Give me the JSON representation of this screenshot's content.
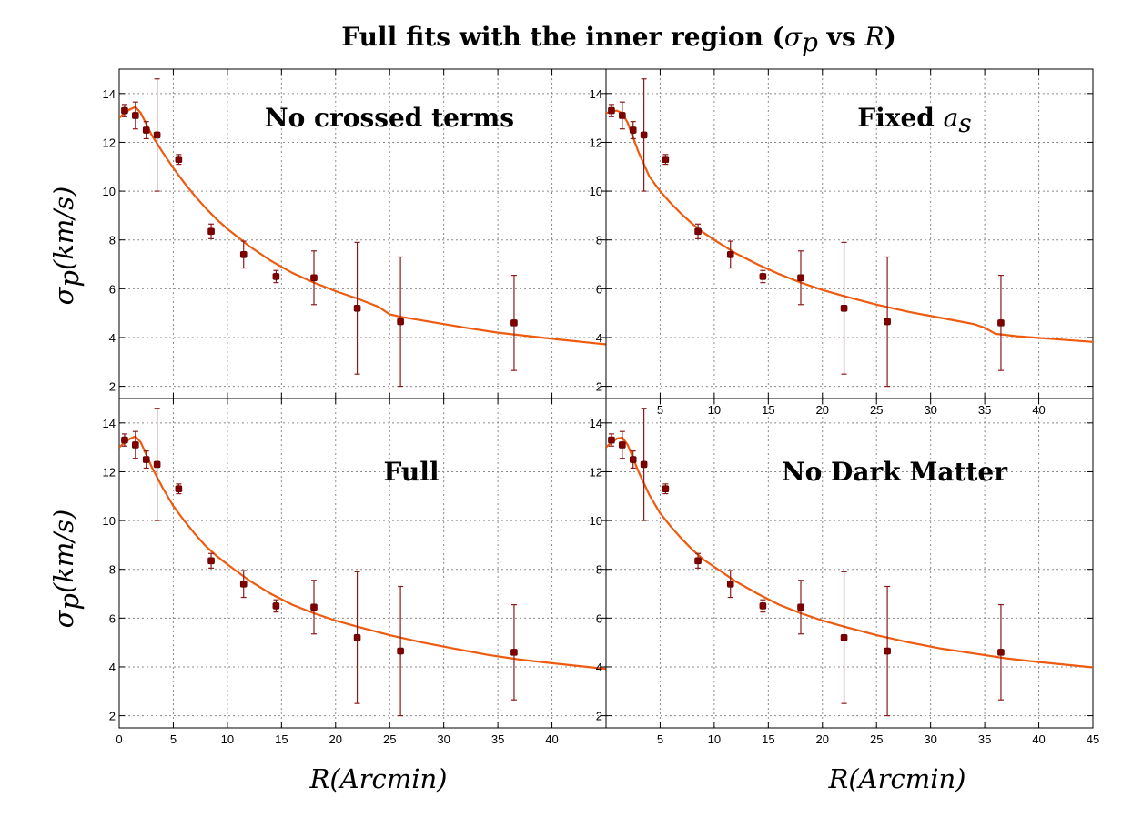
{
  "title": {
    "bold": "Full fits with the inner region (",
    "symbol": "σ",
    "subscript": "p",
    "mid": " vs ",
    "italic": "R",
    "close": ")"
  },
  "axes": {
    "ylabel": {
      "symbol": "σ",
      "subscript": "p",
      "rest": "(km/s)"
    },
    "xlabel": "R(Arcmin)"
  },
  "colors": {
    "curve": "#ee5a0e",
    "points": "#800000",
    "errbars": "#8b1a1a",
    "grid": "#8c8c8c"
  },
  "chart_data": [
    {
      "type": "scatter",
      "panel": "top-left",
      "label": "No crossed terms",
      "xlim": [
        0,
        45
      ],
      "ylim": [
        1.5,
        15
      ],
      "x_ticks": [],
      "y_ticks": [
        2,
        4,
        6,
        8,
        10,
        12,
        14
      ],
      "grid": true,
      "series": [
        {
          "type": "errorbar",
          "x": [
            0.5,
            1.5,
            2.5,
            3.5,
            5.5,
            8.5,
            11.5,
            14.5,
            18,
            22,
            26,
            36.5
          ],
          "y": [
            13.3,
            13.1,
            12.5,
            12.3,
            11.3,
            8.35,
            7.4,
            6.5,
            6.45,
            5.2,
            4.65,
            4.6
          ],
          "yerr": [
            0.25,
            0.55,
            0.35,
            2.3,
            0.2,
            0.3,
            0.55,
            0.25,
            1.1,
            2.7,
            2.65,
            1.95
          ]
        },
        {
          "type": "line",
          "x": [
            0,
            0.5,
            1,
            1.5,
            2,
            3,
            4,
            5,
            6,
            7,
            8,
            9,
            10,
            12,
            14,
            16,
            18,
            20,
            22,
            24,
            25,
            26,
            28,
            30,
            32,
            35,
            38,
            41,
            45
          ],
          "y": [
            13.0,
            13.2,
            13.35,
            13.45,
            13.2,
            12.3,
            11.6,
            10.95,
            10.35,
            9.8,
            9.3,
            8.85,
            8.45,
            7.75,
            7.15,
            6.65,
            6.25,
            5.9,
            5.6,
            5.25,
            4.95,
            4.85,
            4.7,
            4.55,
            4.4,
            4.2,
            4.05,
            3.9,
            3.72
          ]
        }
      ]
    },
    {
      "type": "scatter",
      "panel": "top-right",
      "label": "Fixed a_s",
      "label_bold": "Fixed ",
      "label_italic": "a",
      "label_sub": "s",
      "xlim": [
        0,
        45
      ],
      "ylim": [
        1.5,
        15
      ],
      "x_ticks": [
        5,
        10,
        15,
        20,
        25,
        30,
        35,
        40
      ],
      "y_ticks": [
        2,
        4,
        6,
        8,
        10,
        12,
        14
      ],
      "grid": true,
      "series": [
        {
          "type": "errorbar",
          "x": [
            0.5,
            1.5,
            2.5,
            3.5,
            5.5,
            8.5,
            11.5,
            14.5,
            18,
            22,
            26,
            36.5
          ],
          "y": [
            13.3,
            13.1,
            12.5,
            12.3,
            11.3,
            8.35,
            7.4,
            6.5,
            6.45,
            5.2,
            4.65,
            4.6
          ],
          "yerr": [
            0.25,
            0.55,
            0.35,
            2.3,
            0.2,
            0.3,
            0.55,
            0.25,
            1.1,
            2.7,
            2.65,
            1.95
          ]
        },
        {
          "type": "line",
          "x": [
            0,
            0.5,
            1,
            1.5,
            2,
            3,
            4,
            5,
            6,
            7,
            8,
            9,
            10,
            12,
            14,
            16,
            18,
            20,
            22,
            25,
            28,
            31,
            34,
            35,
            36,
            38,
            41,
            45
          ],
          "y": [
            13.2,
            13.25,
            13.3,
            13.2,
            12.8,
            11.6,
            10.6,
            10.0,
            9.5,
            9.05,
            8.65,
            8.3,
            8.0,
            7.45,
            7.0,
            6.6,
            6.25,
            5.95,
            5.7,
            5.35,
            5.05,
            4.8,
            4.55,
            4.4,
            4.15,
            4.05,
            3.95,
            3.82
          ]
        }
      ]
    },
    {
      "type": "scatter",
      "panel": "bottom-left",
      "label": "Full",
      "xlim": [
        0,
        45
      ],
      "ylim": [
        1.5,
        15
      ],
      "x_ticks": [
        0,
        5,
        10,
        15,
        20,
        25,
        30,
        35,
        40
      ],
      "y_ticks": [
        2,
        4,
        6,
        8,
        10,
        12,
        14
      ],
      "grid": true,
      "series": [
        {
          "type": "errorbar",
          "x": [
            0.5,
            1.5,
            2.5,
            3.5,
            5.5,
            8.5,
            11.5,
            14.5,
            18,
            22,
            26,
            36.5
          ],
          "y": [
            13.3,
            13.1,
            12.5,
            12.3,
            11.3,
            8.35,
            7.4,
            6.5,
            6.45,
            5.2,
            4.65,
            4.6
          ],
          "yerr": [
            0.25,
            0.55,
            0.35,
            2.3,
            0.2,
            0.3,
            0.55,
            0.25,
            1.1,
            2.7,
            2.65,
            1.95
          ]
        },
        {
          "type": "line",
          "x": [
            0,
            0.5,
            1,
            1.5,
            2,
            3,
            4,
            5,
            6,
            7,
            8,
            9,
            10,
            12,
            14,
            16,
            18,
            20,
            22,
            25,
            28,
            31,
            34,
            37,
            40,
            45
          ],
          "y": [
            13.0,
            13.2,
            13.35,
            13.45,
            13.2,
            12.2,
            11.35,
            10.6,
            10.0,
            9.45,
            8.95,
            8.55,
            8.2,
            7.55,
            7.0,
            6.55,
            6.2,
            5.9,
            5.65,
            5.3,
            5.0,
            4.75,
            4.5,
            4.3,
            4.15,
            3.92
          ]
        }
      ]
    },
    {
      "type": "scatter",
      "panel": "bottom-right",
      "label": "No Dark Matter",
      "xlim": [
        0,
        45
      ],
      "ylim": [
        1.5,
        15
      ],
      "x_ticks": [
        5,
        10,
        15,
        20,
        25,
        30,
        35,
        40,
        45
      ],
      "y_ticks": [
        2,
        4,
        6,
        8,
        10,
        12,
        14
      ],
      "grid": true,
      "series": [
        {
          "type": "errorbar",
          "x": [
            0.5,
            1.5,
            2.5,
            3.5,
            5.5,
            8.5,
            11.5,
            14.5,
            18,
            22,
            26,
            36.5
          ],
          "y": [
            13.3,
            13.1,
            12.5,
            12.3,
            11.3,
            8.35,
            7.4,
            6.5,
            6.45,
            5.2,
            4.65,
            4.6
          ],
          "yerr": [
            0.25,
            0.55,
            0.35,
            2.3,
            0.2,
            0.3,
            0.55,
            0.25,
            1.1,
            2.7,
            2.65,
            1.95
          ]
        },
        {
          "type": "line",
          "x": [
            0,
            0.5,
            1,
            1.5,
            2,
            3,
            4,
            5,
            6,
            7,
            8,
            9,
            10,
            12,
            14,
            16,
            18,
            20,
            22,
            25,
            28,
            31,
            34,
            37,
            40,
            45
          ],
          "y": [
            13.0,
            13.2,
            13.35,
            13.4,
            13.1,
            12.0,
            11.05,
            10.3,
            9.75,
            9.25,
            8.8,
            8.4,
            8.1,
            7.5,
            7.0,
            6.55,
            6.2,
            5.9,
            5.65,
            5.3,
            5.0,
            4.75,
            4.55,
            4.35,
            4.2,
            3.98
          ]
        }
      ]
    }
  ]
}
